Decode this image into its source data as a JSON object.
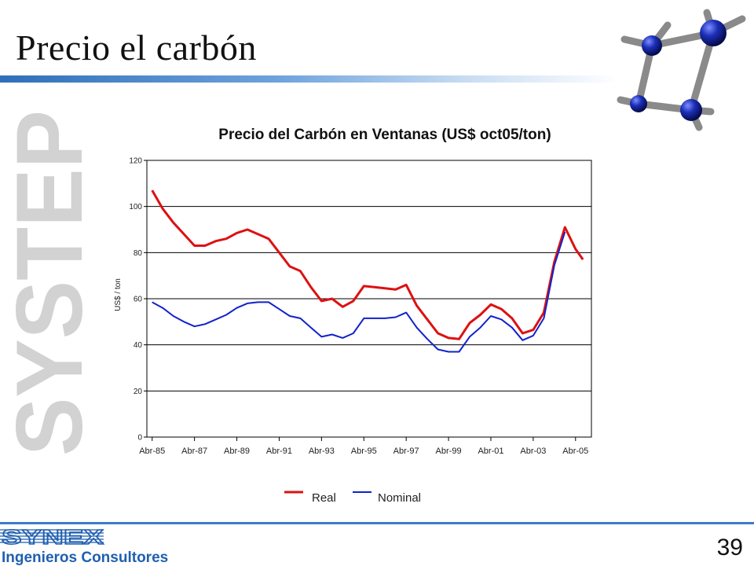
{
  "slide": {
    "title": "Precio el carbón",
    "page_number": "39",
    "watermark_text": "SYSTEP",
    "logo": {
      "name": "SYNEX",
      "subtitle": "Ingenieros Consultores"
    }
  },
  "colors": {
    "real": "#dd1111",
    "nominal": "#1122cc",
    "accent": "#2f6fb8"
  },
  "chart_data": {
    "type": "line",
    "title": "Precio del Carbón en Ventanas (US$ oct05/ton)",
    "xlabel": "",
    "ylabel": "US$ / ton",
    "ylim": [
      0,
      120
    ],
    "yticks": [
      0,
      20,
      40,
      60,
      80,
      100,
      120
    ],
    "x_tick_labels": [
      "Abr-85",
      "Abr-87",
      "Abr-89",
      "Abr-91",
      "Abr-93",
      "Abr-95",
      "Abr-97",
      "Abr-99",
      "Abr-01",
      "Abr-03",
      "Abr-05"
    ],
    "grid": true,
    "legend_position": "bottom",
    "series": [
      {
        "name": "Real",
        "color": "#dd1111",
        "x": [
          1985.25,
          1985.75,
          1986.25,
          1986.75,
          1987.25,
          1987.75,
          1988.25,
          1988.75,
          1989.25,
          1989.75,
          1990.25,
          1990.75,
          1991.25,
          1991.75,
          1992.25,
          1992.75,
          1993.25,
          1993.75,
          1994.25,
          1994.75,
          1995.25,
          1995.75,
          1996.25,
          1996.75,
          1997.25,
          1997.75,
          1998.25,
          1998.75,
          1999.25,
          1999.75,
          2000.25,
          2000.75,
          2001.25,
          2001.75,
          2002.25,
          2002.75,
          2003.25,
          2003.75,
          2004.25,
          2004.75,
          2005.25,
          2005.6
        ],
        "values": [
          107,
          99,
          93,
          88,
          83,
          83,
          85,
          86,
          88.5,
          90,
          88,
          86,
          80,
          74,
          72,
          65,
          59,
          60,
          56.5,
          59,
          65.5,
          65,
          64.5,
          64,
          66,
          57,
          51,
          45,
          43,
          42.5,
          49.5,
          53,
          57.5,
          55.5,
          51.5,
          45,
          46.5,
          54,
          76,
          91,
          81.5,
          77
        ]
      },
      {
        "name": "Nominal",
        "color": "#1122cc",
        "x": [
          1985.25,
          1985.75,
          1986.25,
          1986.75,
          1987.25,
          1987.75,
          1988.25,
          1988.75,
          1989.25,
          1989.75,
          1990.25,
          1990.75,
          1991.25,
          1991.75,
          1992.25,
          1992.75,
          1993.25,
          1993.75,
          1994.25,
          1994.75,
          1995.25,
          1995.75,
          1996.25,
          1996.75,
          1997.25,
          1997.75,
          1998.25,
          1998.75,
          1999.25,
          1999.75,
          2000.25,
          2000.75,
          2001.25,
          2001.75,
          2002.25,
          2002.75,
          2003.25,
          2003.75,
          2004.25,
          2004.75
        ],
        "values": [
          58.5,
          56,
          52.5,
          50,
          48,
          49,
          51,
          53,
          56,
          58,
          58.5,
          58.5,
          55.5,
          52.5,
          51.5,
          47.5,
          43.5,
          44.5,
          43,
          45,
          51.5,
          51.5,
          51.5,
          52,
          54,
          47.5,
          42.5,
          38,
          37,
          37,
          43.5,
          47.5,
          52.5,
          51,
          47.5,
          42,
          44,
          51.5,
          74.5,
          89
        ]
      }
    ]
  }
}
